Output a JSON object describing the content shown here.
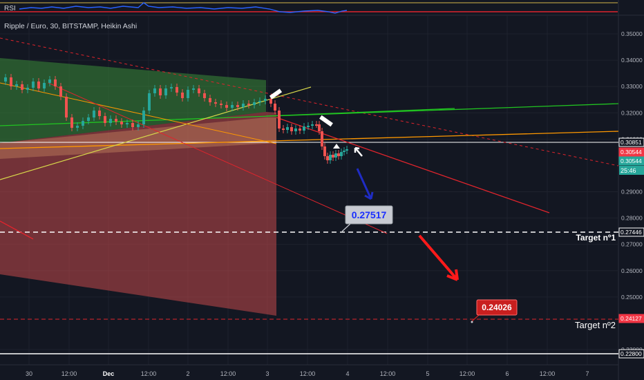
{
  "rsi_label": "RSI",
  "title": "Ripple / Euro, 30, BITSTAMP, Heikin Ashi",
  "time_countdown": "25:46",
  "chart_data": {
    "type": "candlestick",
    "symbol": "Ripple / Euro",
    "interval": "30",
    "exchange": "BITSTAMP",
    "candle_style": "Heikin Ashi",
    "y_ticks": [
      "0.35000",
      "0.34000",
      "0.33000",
      "0.32000",
      "0.31000",
      "0.29000",
      "0.28000",
      "0.27000",
      "0.26000",
      "0.25000",
      "0.23000"
    ],
    "y_range": [
      0.2272,
      0.3563
    ],
    "x_ticks": [
      "30",
      "12:00",
      "Dec",
      "12:00",
      "2",
      "12:00",
      "3",
      "12:00",
      "4",
      "12:00",
      "5",
      "12:00",
      "6",
      "12:00",
      "7"
    ],
    "price_tags": [
      {
        "value": "0.30851",
        "bg": "#131722",
        "fg": "#ffffff",
        "border": "#ffffff"
      },
      {
        "value": "0.30544",
        "bg": "#f23645",
        "fg": "#ffffff",
        "border": "#f23645"
      },
      {
        "value": "0.30544",
        "bg": "#26a69a",
        "fg": "#ffffff",
        "border": "#26a69a"
      },
      {
        "value": "0.27446",
        "bg": "#131722",
        "fg": "#ffffff",
        "border": "#ffffff"
      },
      {
        "value": "0.24127",
        "bg": "#f23645",
        "fg": "#ffffff",
        "border": "#f23645"
      },
      {
        "value": "0.22800",
        "bg": "#131722",
        "fg": "#ffffff",
        "border": "#ffffff"
      }
    ],
    "callouts": [
      {
        "value": "0.27517",
        "bg": "#c8cbd3",
        "fg": "#1a2fff"
      },
      {
        "value": "0.24026",
        "bg": "#c91f1f",
        "fg": "#ffffff"
      }
    ],
    "targets": [
      "Target nº1",
      "Target nº2"
    ],
    "levels": {
      "target1": 0.27446,
      "target2": 0.24127,
      "bottom": 0.228,
      "resistance": 0.30851
    },
    "colors": {
      "up": "#26a69a",
      "down": "#ef5350",
      "bg": "#131722",
      "rsi_line": "#2962ff"
    }
  }
}
